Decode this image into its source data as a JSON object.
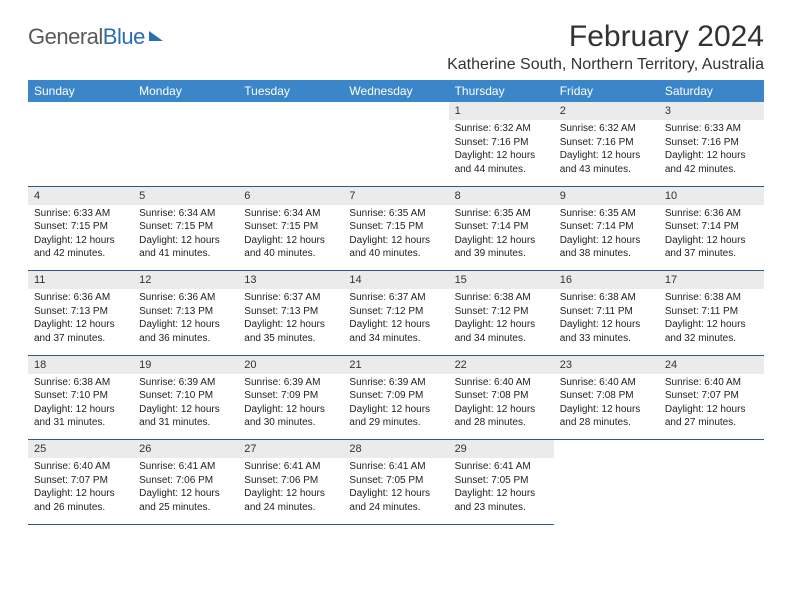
{
  "brand": {
    "part1": "General",
    "part2": "Blue"
  },
  "title": "February 2024",
  "location": "Katherine South, Northern Territory, Australia",
  "weekdays": [
    "Sunday",
    "Monday",
    "Tuesday",
    "Wednesday",
    "Thursday",
    "Friday",
    "Saturday"
  ],
  "colors": {
    "header_bg": "#3b86c9",
    "daynum_bg": "#ebebeb",
    "rule": "#2a5a8a",
    "logo_blue": "#2a6db8",
    "text": "#222222"
  },
  "weeks": [
    [
      null,
      null,
      null,
      null,
      {
        "n": "1",
        "sr": "Sunrise: 6:32 AM",
        "ss": "Sunset: 7:16 PM",
        "d1": "Daylight: 12 hours",
        "d2": "and 44 minutes."
      },
      {
        "n": "2",
        "sr": "Sunrise: 6:32 AM",
        "ss": "Sunset: 7:16 PM",
        "d1": "Daylight: 12 hours",
        "d2": "and 43 minutes."
      },
      {
        "n": "3",
        "sr": "Sunrise: 6:33 AM",
        "ss": "Sunset: 7:16 PM",
        "d1": "Daylight: 12 hours",
        "d2": "and 42 minutes."
      }
    ],
    [
      {
        "n": "4",
        "sr": "Sunrise: 6:33 AM",
        "ss": "Sunset: 7:15 PM",
        "d1": "Daylight: 12 hours",
        "d2": "and 42 minutes."
      },
      {
        "n": "5",
        "sr": "Sunrise: 6:34 AM",
        "ss": "Sunset: 7:15 PM",
        "d1": "Daylight: 12 hours",
        "d2": "and 41 minutes."
      },
      {
        "n": "6",
        "sr": "Sunrise: 6:34 AM",
        "ss": "Sunset: 7:15 PM",
        "d1": "Daylight: 12 hours",
        "d2": "and 40 minutes."
      },
      {
        "n": "7",
        "sr": "Sunrise: 6:35 AM",
        "ss": "Sunset: 7:15 PM",
        "d1": "Daylight: 12 hours",
        "d2": "and 40 minutes."
      },
      {
        "n": "8",
        "sr": "Sunrise: 6:35 AM",
        "ss": "Sunset: 7:14 PM",
        "d1": "Daylight: 12 hours",
        "d2": "and 39 minutes."
      },
      {
        "n": "9",
        "sr": "Sunrise: 6:35 AM",
        "ss": "Sunset: 7:14 PM",
        "d1": "Daylight: 12 hours",
        "d2": "and 38 minutes."
      },
      {
        "n": "10",
        "sr": "Sunrise: 6:36 AM",
        "ss": "Sunset: 7:14 PM",
        "d1": "Daylight: 12 hours",
        "d2": "and 37 minutes."
      }
    ],
    [
      {
        "n": "11",
        "sr": "Sunrise: 6:36 AM",
        "ss": "Sunset: 7:13 PM",
        "d1": "Daylight: 12 hours",
        "d2": "and 37 minutes."
      },
      {
        "n": "12",
        "sr": "Sunrise: 6:36 AM",
        "ss": "Sunset: 7:13 PM",
        "d1": "Daylight: 12 hours",
        "d2": "and 36 minutes."
      },
      {
        "n": "13",
        "sr": "Sunrise: 6:37 AM",
        "ss": "Sunset: 7:13 PM",
        "d1": "Daylight: 12 hours",
        "d2": "and 35 minutes."
      },
      {
        "n": "14",
        "sr": "Sunrise: 6:37 AM",
        "ss": "Sunset: 7:12 PM",
        "d1": "Daylight: 12 hours",
        "d2": "and 34 minutes."
      },
      {
        "n": "15",
        "sr": "Sunrise: 6:38 AM",
        "ss": "Sunset: 7:12 PM",
        "d1": "Daylight: 12 hours",
        "d2": "and 34 minutes."
      },
      {
        "n": "16",
        "sr": "Sunrise: 6:38 AM",
        "ss": "Sunset: 7:11 PM",
        "d1": "Daylight: 12 hours",
        "d2": "and 33 minutes."
      },
      {
        "n": "17",
        "sr": "Sunrise: 6:38 AM",
        "ss": "Sunset: 7:11 PM",
        "d1": "Daylight: 12 hours",
        "d2": "and 32 minutes."
      }
    ],
    [
      {
        "n": "18",
        "sr": "Sunrise: 6:38 AM",
        "ss": "Sunset: 7:10 PM",
        "d1": "Daylight: 12 hours",
        "d2": "and 31 minutes."
      },
      {
        "n": "19",
        "sr": "Sunrise: 6:39 AM",
        "ss": "Sunset: 7:10 PM",
        "d1": "Daylight: 12 hours",
        "d2": "and 31 minutes."
      },
      {
        "n": "20",
        "sr": "Sunrise: 6:39 AM",
        "ss": "Sunset: 7:09 PM",
        "d1": "Daylight: 12 hours",
        "d2": "and 30 minutes."
      },
      {
        "n": "21",
        "sr": "Sunrise: 6:39 AM",
        "ss": "Sunset: 7:09 PM",
        "d1": "Daylight: 12 hours",
        "d2": "and 29 minutes."
      },
      {
        "n": "22",
        "sr": "Sunrise: 6:40 AM",
        "ss": "Sunset: 7:08 PM",
        "d1": "Daylight: 12 hours",
        "d2": "and 28 minutes."
      },
      {
        "n": "23",
        "sr": "Sunrise: 6:40 AM",
        "ss": "Sunset: 7:08 PM",
        "d1": "Daylight: 12 hours",
        "d2": "and 28 minutes."
      },
      {
        "n": "24",
        "sr": "Sunrise: 6:40 AM",
        "ss": "Sunset: 7:07 PM",
        "d1": "Daylight: 12 hours",
        "d2": "and 27 minutes."
      }
    ],
    [
      {
        "n": "25",
        "sr": "Sunrise: 6:40 AM",
        "ss": "Sunset: 7:07 PM",
        "d1": "Daylight: 12 hours",
        "d2": "and 26 minutes."
      },
      {
        "n": "26",
        "sr": "Sunrise: 6:41 AM",
        "ss": "Sunset: 7:06 PM",
        "d1": "Daylight: 12 hours",
        "d2": "and 25 minutes."
      },
      {
        "n": "27",
        "sr": "Sunrise: 6:41 AM",
        "ss": "Sunset: 7:06 PM",
        "d1": "Daylight: 12 hours",
        "d2": "and 24 minutes."
      },
      {
        "n": "28",
        "sr": "Sunrise: 6:41 AM",
        "ss": "Sunset: 7:05 PM",
        "d1": "Daylight: 12 hours",
        "d2": "and 24 minutes."
      },
      {
        "n": "29",
        "sr": "Sunrise: 6:41 AM",
        "ss": "Sunset: 7:05 PM",
        "d1": "Daylight: 12 hours",
        "d2": "and 23 minutes."
      },
      null,
      null
    ]
  ]
}
